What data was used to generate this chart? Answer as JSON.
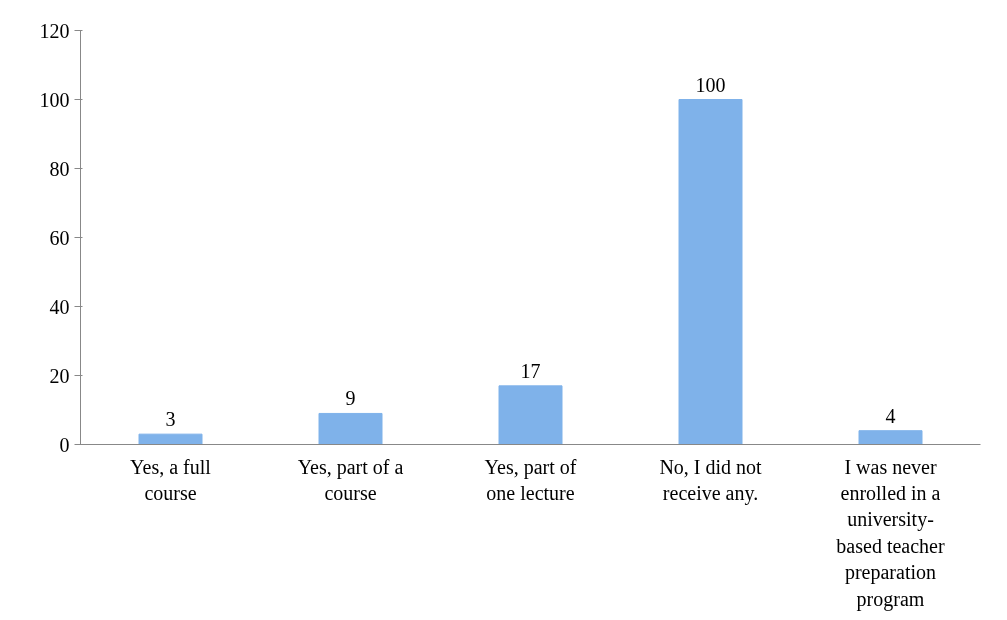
{
  "chart_data": {
    "type": "bar",
    "categories": [
      "Yes, a full course",
      "Yes, part of a course",
      "Yes, part of one lecture",
      "No, I did not receive any.",
      "I was never enrolled in a university-based teacher preparation program"
    ],
    "values": [
      3,
      9,
      17,
      100,
      4
    ],
    "color": "#7fb2ea",
    "ylim": [
      0,
      120
    ],
    "yticks": [
      0,
      20,
      40,
      60,
      80,
      100,
      120
    ],
    "data_labels": true,
    "grid": false
  }
}
